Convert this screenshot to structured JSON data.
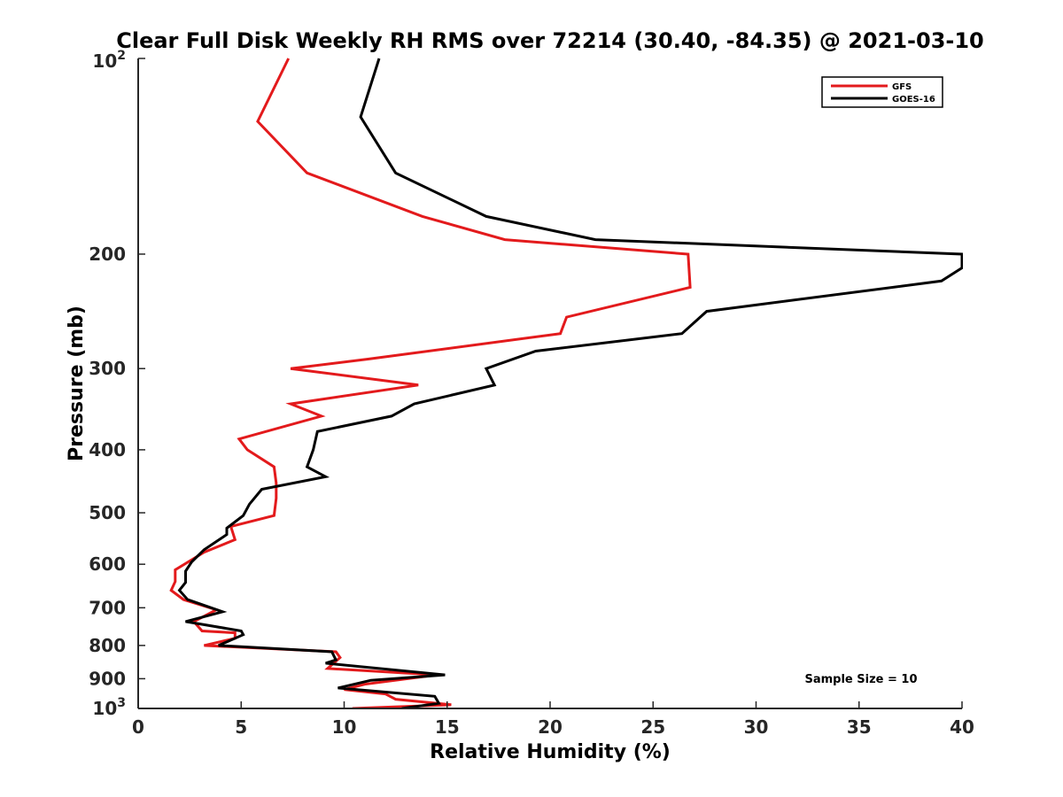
{
  "chart_data": {
    "type": "line",
    "title": "Clear Full Disk Weekly RH RMS over 72214 (30.40, -84.35) @ 2021-03-10",
    "xlabel": "Relative Humidity (%)",
    "ylabel": "Pressure (mb)",
    "xlim": [
      0,
      40
    ],
    "ylim": [
      100,
      1000
    ],
    "yscale": "log",
    "yreversed": true,
    "x_ticks": [
      "0",
      "5",
      "10",
      "15",
      "20",
      "25",
      "30",
      "35",
      "40"
    ],
    "y_ticks": [
      {
        "value": 100,
        "base": "10",
        "exp": "2"
      },
      {
        "value": 200,
        "label": "200"
      },
      {
        "value": 300,
        "label": "300"
      },
      {
        "value": 400,
        "label": "400"
      },
      {
        "value": 500,
        "label": "500"
      },
      {
        "value": 600,
        "label": "600"
      },
      {
        "value": 700,
        "label": "700"
      },
      {
        "value": 800,
        "label": "800"
      },
      {
        "value": 900,
        "label": "900"
      },
      {
        "value": 1000,
        "base": "10",
        "exp": "3"
      }
    ],
    "legend_position": "top-right",
    "annotation": "Sample Size = 10",
    "series": [
      {
        "name": "GFS",
        "color": "#e31a1c",
        "points": [
          [
            7.3,
            100
          ],
          [
            5.8,
            125
          ],
          [
            8.2,
            150
          ],
          [
            13.8,
            175
          ],
          [
            17.8,
            190
          ],
          [
            26.7,
            200
          ],
          [
            26.8,
            225
          ],
          [
            20.8,
            250
          ],
          [
            20.5,
            265
          ],
          [
            11.2,
            290
          ],
          [
            7.4,
            300
          ],
          [
            13.6,
            318
          ],
          [
            7.4,
            340
          ],
          [
            8.9,
            355
          ],
          [
            4.9,
            385
          ],
          [
            5.3,
            400
          ],
          [
            6.6,
            425
          ],
          [
            6.7,
            450
          ],
          [
            6.7,
            475
          ],
          [
            6.6,
            505
          ],
          [
            4.5,
            525
          ],
          [
            4.7,
            550
          ],
          [
            3.2,
            575
          ],
          [
            1.8,
            612
          ],
          [
            1.8,
            638
          ],
          [
            1.6,
            658
          ],
          [
            2.2,
            680
          ],
          [
            3.8,
            705
          ],
          [
            2.7,
            735
          ],
          [
            3.1,
            760
          ],
          [
            4.7,
            765
          ],
          [
            4.7,
            780
          ],
          [
            3.2,
            800
          ],
          [
            9.6,
            818
          ],
          [
            9.8,
            835
          ],
          [
            9.2,
            868
          ],
          [
            14.5,
            888
          ],
          [
            11.0,
            918
          ],
          [
            10.0,
            935
          ],
          [
            12.0,
            950
          ],
          [
            12.5,
            968
          ],
          [
            15.2,
            987
          ],
          [
            10.4,
            1000
          ]
        ]
      },
      {
        "name": "GOES-16",
        "color": "#000000",
        "points": [
          [
            11.7,
            100
          ],
          [
            10.8,
            123
          ],
          [
            12.5,
            150
          ],
          [
            16.9,
            175
          ],
          [
            22.2,
            190
          ],
          [
            40.0,
            200
          ],
          [
            40.0,
            210
          ],
          [
            39.0,
            220
          ],
          [
            27.6,
            245
          ],
          [
            26.4,
            265
          ],
          [
            19.3,
            282
          ],
          [
            16.9,
            300
          ],
          [
            17.3,
            318
          ],
          [
            13.4,
            340
          ],
          [
            12.3,
            355
          ],
          [
            8.7,
            375
          ],
          [
            8.5,
            400
          ],
          [
            8.2,
            425
          ],
          [
            9.1,
            440
          ],
          [
            6.0,
            460
          ],
          [
            5.4,
            485
          ],
          [
            5.1,
            505
          ],
          [
            4.3,
            528
          ],
          [
            4.3,
            540
          ],
          [
            3.2,
            570
          ],
          [
            2.6,
            595
          ],
          [
            2.3,
            615
          ],
          [
            2.3,
            640
          ],
          [
            2.0,
            658
          ],
          [
            2.4,
            680
          ],
          [
            4.1,
            710
          ],
          [
            2.3,
            735
          ],
          [
            5.0,
            760
          ],
          [
            5.1,
            770
          ],
          [
            3.9,
            800
          ],
          [
            9.4,
            818
          ],
          [
            9.6,
            842
          ],
          [
            9.1,
            852
          ],
          [
            14.9,
            888
          ],
          [
            11.3,
            905
          ],
          [
            9.7,
            930
          ],
          [
            14.4,
            958
          ],
          [
            14.6,
            982
          ],
          [
            12.8,
            1000
          ]
        ]
      }
    ]
  }
}
